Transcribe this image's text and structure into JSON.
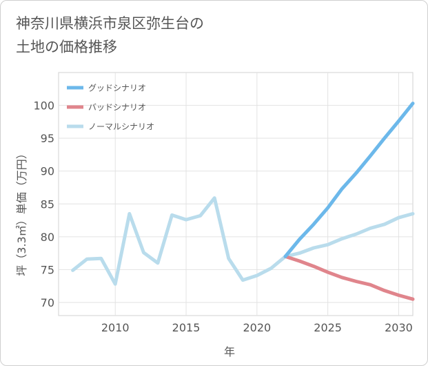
{
  "title_line1": "神奈川県横浜市泉区弥生台の",
  "title_line2": "土地の価格推移",
  "chart_data": {
    "type": "line",
    "xlabel": "年",
    "ylabel": "坪（3.3㎡）単価（万円）",
    "xlim": [
      2006,
      2031
    ],
    "ylim": [
      68,
      105
    ],
    "xticks": [
      2010,
      2015,
      2020,
      2025,
      2030
    ],
    "yticks": [
      70,
      75,
      80,
      85,
      90,
      95,
      100
    ],
    "grid": true,
    "legend_position": "top-left",
    "series": [
      {
        "name": "グッドシナリオ",
        "color": "#6cb8ea",
        "x": [
          2022,
          2023,
          2024,
          2025,
          2026,
          2027,
          2028,
          2029,
          2030,
          2031
        ],
        "y": [
          77.0,
          79.6,
          81.9,
          84.4,
          87.3,
          89.7,
          92.3,
          95.0,
          97.6,
          100.3
        ]
      },
      {
        "name": "バッドシナリオ",
        "color": "#e0858c",
        "x": [
          2022,
          2023,
          2024,
          2025,
          2026,
          2027,
          2028,
          2029,
          2030,
          2031
        ],
        "y": [
          77.0,
          76.3,
          75.5,
          74.6,
          73.8,
          73.2,
          72.7,
          71.8,
          71.1,
          70.5
        ]
      },
      {
        "name": "ノーマルシナリオ",
        "color": "#b9dcec",
        "x": [
          2007,
          2008,
          2009,
          2010,
          2011,
          2012,
          2013,
          2014,
          2015,
          2016,
          2017,
          2018,
          2019,
          2020,
          2021,
          2022,
          2023,
          2024,
          2025,
          2026,
          2027,
          2028,
          2029,
          2030,
          2031
        ],
        "y": [
          74.9,
          76.6,
          76.7,
          72.8,
          83.5,
          77.6,
          76.0,
          83.3,
          82.6,
          83.2,
          85.9,
          76.7,
          73.4,
          74.1,
          75.2,
          77.0,
          77.5,
          78.3,
          78.8,
          79.7,
          80.4,
          81.3,
          81.9,
          82.9,
          83.5
        ]
      }
    ]
  }
}
